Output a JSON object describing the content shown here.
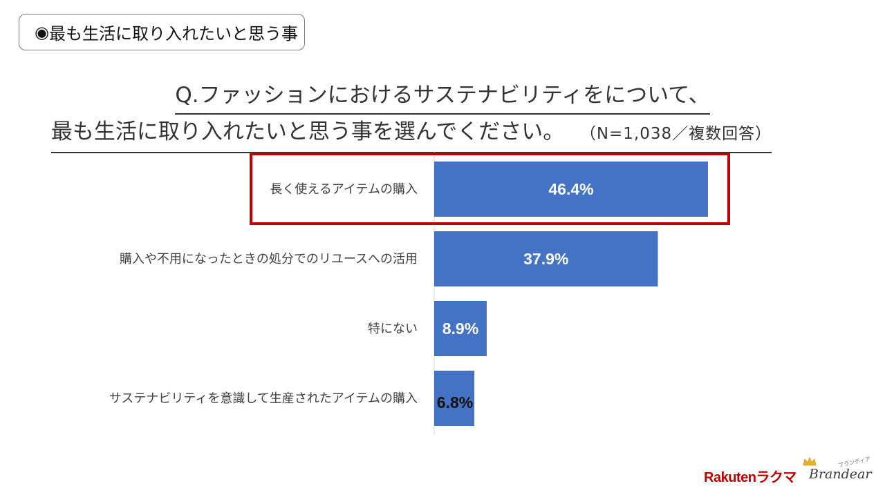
{
  "section_tag": {
    "bullet": "◉",
    "text": "最も生活に取り入れたいと思う事"
  },
  "question": {
    "line1": "Q.ファッションにおけるサステナビリティをについて、",
    "line2": "最も生活に取り入れたいと思う事を選んでください。",
    "meta": "（N=1,038／複数回答）"
  },
  "chart_data": {
    "type": "bar",
    "orientation": "horizontal",
    "categories": [
      "長く使えるアイテムの購入",
      "購入や不用になったときの処分でのリユースへの活用",
      "特にない",
      "サステナビリティを意識して生産されたアイテムの購入"
    ],
    "values": [
      46.4,
      37.9,
      8.9,
      6.8
    ],
    "value_labels": [
      "46.4%",
      "37.9%",
      "8.9%",
      "6.8%"
    ],
    "unit": "%",
    "xlim": [
      0,
      50
    ],
    "bar_color": "#4472C4",
    "grid": false,
    "highlight": {
      "index": 0,
      "color": "#C00000"
    }
  },
  "logos": {
    "rakuten": "Rakuten",
    "rakuma": "ラクマ",
    "brandear": "Brandear",
    "brandear_kana": "ブランディア"
  }
}
